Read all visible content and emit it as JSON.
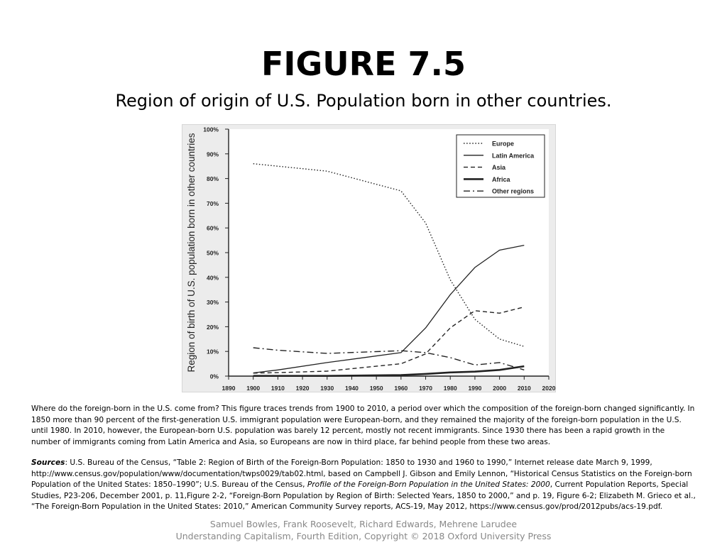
{
  "slide": {
    "title": "FIGURE 7.5",
    "subtitle": "Region of origin of U.S. Population born in other countries."
  },
  "chart_data": {
    "type": "line",
    "title": "",
    "xlabel": "",
    "ylabel": "Region of  birth of U.S. population born in other countries",
    "x": [
      1900,
      1910,
      1930,
      1960,
      1970,
      1980,
      1990,
      2000,
      2010
    ],
    "xlim": [
      1890,
      2020
    ],
    "ylim": [
      0,
      100
    ],
    "x_ticks": [
      "1890",
      "1900",
      "1910",
      "1920",
      "1930",
      "1940",
      "1950",
      "1960",
      "1970",
      "1980",
      "1990",
      "2000",
      "2010",
      "2020"
    ],
    "y_ticks": [
      "0%",
      "10%",
      "20%",
      "30%",
      "40%",
      "50%",
      "60%",
      "70%",
      "80%",
      "90%",
      "100%"
    ],
    "grid": false,
    "legend_position": "top-right",
    "series": [
      {
        "name": "Europe",
        "style": "dotted",
        "values": [
          86,
          85,
          83,
          75,
          62,
          39,
          23,
          15,
          12
        ]
      },
      {
        "name": "Latin America",
        "style": "solid",
        "values": [
          1.3,
          2.5,
          5.5,
          9.5,
          19.5,
          33,
          44,
          51,
          53
        ]
      },
      {
        "name": "Asia",
        "style": "dashed",
        "values": [
          1.2,
          1.4,
          2,
          5,
          9,
          19.5,
          26.5,
          25.5,
          28
        ]
      },
      {
        "name": "Africa",
        "style": "bold",
        "values": [
          0.1,
          0.1,
          0.1,
          0.4,
          0.9,
          1.5,
          1.8,
          2.5,
          4
        ]
      },
      {
        "name": "Other regions",
        "style": "dash-dot",
        "values": [
          11.5,
          10.5,
          9.2,
          10.3,
          9.5,
          7.5,
          4.5,
          5.5,
          2.5
        ]
      }
    ],
    "series_color": "#222222"
  },
  "caption": "Where do the foreign-born in the U.S. come from? This figure traces trends from 1900 to 2010, a period over which the composition of the foreign-born changed significantly. In 1850 more than 90 percent of the first-generation U.S. immigrant population were European-born, and they remained the majority of the foreign-born population in the U.S. until 1980. In 2010, however, the European-born U.S. population was barely 12 percent, mostly not recent immigrants. Since 1930 there has been a rapid growth in the number of immigrants coming from Latin America and Asia, so Europeans are now in third place, far behind people from these two areas.",
  "sources": {
    "label": "Sources",
    "part1": ": U.S. Bureau of the Census, “Table 2: Region of Birth of the Foreign-Born Population: 1850 to 1930 and 1960 to 1990,” Internet release date March 9, 1999, http://www.census.gov/population/www/documentation/twps0029/tab02.html, based on Campbell J. Gibson and Emily Lennon, “Historical Census Statistics on the Foreign-born Population of the United States: 1850–1990”; U.S. Bureau of the Census, ",
    "italic_title": "Profile of the Foreign-Born Population in the United States: 2000",
    "part2": ", Current Population Reports, Special Studies, P23-206, December 2001, p. 11,Figure 2-2, “Foreign-Born Population by Region of Birth: Selected Years, 1850 to 2000,” and p. 19, Figure 6-2; Elizabeth M. Grieco et al., “The Foreign-Born Population in the United States: 2010,” American Community Survey reports, ACS-19, May 2012, https://www.census.gov/prod/2012pubs/acs-19.pdf."
  },
  "footer": {
    "authors": "Samuel Bowles, Frank Roosevelt, Richard Edwards, Mehrene Larudee",
    "book": "Understanding Capitalism, Fourth Edition, Copyright © 2018 Oxford University Press"
  }
}
